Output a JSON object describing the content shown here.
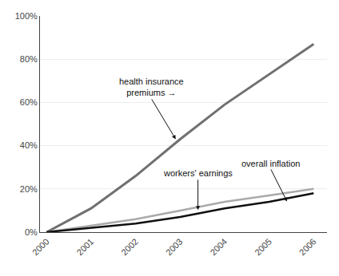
{
  "chart_data": {
    "type": "line",
    "x": [
      2000,
      2001,
      2002,
      2003,
      2004,
      2005,
      2006
    ],
    "series": [
      {
        "color": "#707070",
        "values": [
          0,
          11,
          26,
          43,
          59,
          73,
          87
        ]
      },
      {
        "color": "#aaaaaa",
        "values": [
          0,
          3,
          6,
          10,
          14,
          17,
          20
        ]
      },
      {
        "color": "#101010",
        "values": [
          0,
          2,
          4,
          7,
          11,
          14,
          18
        ]
      }
    ],
    "annotations": [
      {
        "text": "health insurance\npremiums →",
        "x": 2002.9,
        "y": 43
      },
      {
        "text": "workers' earnings",
        "x": 2003.4,
        "y": 10.2
      },
      {
        "text": "overall inflation",
        "x": 2005.4,
        "y": 14.2
      }
    ],
    "xlim": [
      1999.85,
      2006.3
    ],
    "xticks": [
      2000,
      2001,
      2002,
      2003,
      2004,
      2005,
      2006
    ],
    "ylim": [
      0,
      100
    ],
    "yticks": [
      {
        "value": 0,
        "label": "0%"
      },
      {
        "value": 20,
        "label": "20%"
      },
      {
        "value": 40,
        "label": "40%"
      },
      {
        "value": 60,
        "label": "60%"
      },
      {
        "value": 80,
        "label": "80%"
      },
      {
        "value": 100,
        "label": "100%"
      }
    ],
    "grid": true
  }
}
